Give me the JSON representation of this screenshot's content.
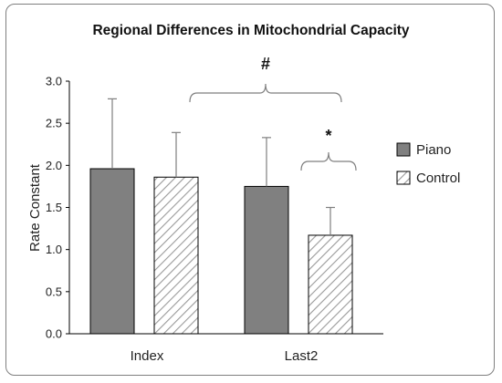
{
  "chart_data": {
    "type": "bar",
    "title": "Regional Differences in Mitochondrial Capacity",
    "xlabel": "",
    "ylabel": "Rate Constant",
    "ylim": [
      0,
      3.0
    ],
    "yticks": [
      "0.0",
      "0.5",
      "1.0",
      "1.5",
      "2.0",
      "2.5",
      "3.0"
    ],
    "categories": [
      "Index",
      "Last2"
    ],
    "series": [
      {
        "name": "Piano",
        "values": [
          1.96,
          1.75
        ],
        "error_upper": [
          0.83,
          0.58
        ],
        "color": "#808080",
        "pattern": "solid"
      },
      {
        "name": "Control",
        "values": [
          1.86,
          1.17
        ],
        "error_upper": [
          0.53,
          0.33
        ],
        "color": "#ffffff",
        "pattern": "diagonal-hatch"
      }
    ],
    "legend": {
      "position": "right",
      "entries": [
        "Piano",
        "Control"
      ]
    },
    "annotations": [
      {
        "symbol": "#",
        "spans": "Index vs Last2"
      },
      {
        "symbol": "*",
        "spans": "Last2 Piano vs Last2 Control"
      }
    ],
    "grid": false
  }
}
